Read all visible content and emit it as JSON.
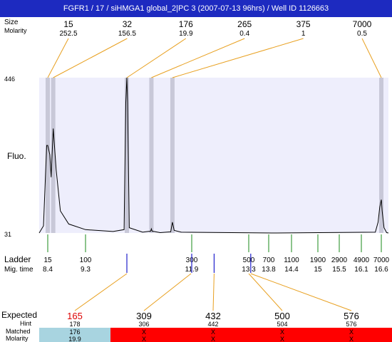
{
  "title": "FGFR1 / 17 / siHMGA1 global_2|PC 3 (2007-07-13 96hrs) / Well ID 1126663",
  "labels": {
    "size": "Size",
    "molarity": "Molarity",
    "fluo": "Fluo.",
    "ladder": "Ladder",
    "migtime": "Mig. time",
    "expected": "Expected",
    "hint": "Hint",
    "matched": "Matched",
    "molarity_bottom": "Molarity"
  },
  "colors": {
    "title_bg": "#1d2ac0",
    "plot_bg": "#eeeefc",
    "peak_band": "#c8c8d8",
    "callout_line": "#e8a020",
    "ladder_tick": "#1a8a1a",
    "observed_tick": "#2020cc",
    "matched_ok": "#a8d4e0",
    "matched_bad": "#ff0000",
    "expected_unmatched": "#dd0000"
  },
  "chart_data": {
    "type": "line",
    "y_axis": {
      "top_label": "446",
      "bottom_label": "31"
    },
    "peaks": [
      {
        "size": "15",
        "molarity": "252.5",
        "mig_time": 8.4
      },
      {
        "size": "32",
        "molarity": "156.5",
        "mig_time": 8.53
      },
      {
        "size": "176",
        "molarity": "19.9",
        "mig_time": 10.05
      },
      {
        "size": "265",
        "molarity": "0.4",
        "mig_time": 10.75
      },
      {
        "size": "375",
        "molarity": "1",
        "mig_time": 11.35
      },
      {
        "size": "7000",
        "molarity": "0.5",
        "mig_time": 16.6
      }
    ],
    "ladder": [
      {
        "size": "15",
        "time": "8.4"
      },
      {
        "size": "100",
        "time": "9.3"
      },
      {
        "size": "300",
        "time": "11.9"
      },
      {
        "size": "500",
        "time": "13.3"
      },
      {
        "size": "700",
        "time": "13.8"
      },
      {
        "size": "1100",
        "time": "14.4"
      },
      {
        "size": "1900",
        "time": "15"
      },
      {
        "size": "2900",
        "time": "15.5"
      },
      {
        "size": "4900",
        "time": "16.1"
      },
      {
        "size": "7000",
        "time": "16.6"
      }
    ],
    "observed_ticks": [
      10.05,
      11.9,
      12.45,
      13.35
    ],
    "expected": [
      {
        "expected": "165",
        "hint": "178",
        "matched": "176",
        "molarity": "19.9",
        "ok": true,
        "mig_time": 10.05
      },
      {
        "expected": "309",
        "hint": "306",
        "matched": "X",
        "molarity": "X",
        "ok": false,
        "mig_time": 11.88
      },
      {
        "expected": "432",
        "hint": "442",
        "matched": "X",
        "molarity": "X",
        "ok": false,
        "mig_time": 12.45
      },
      {
        "expected": "500",
        "hint": "504",
        "matched": "X",
        "molarity": "X",
        "ok": false,
        "mig_time": 13.3
      },
      {
        "expected": "576",
        "hint": "576",
        "matched": "X",
        "molarity": "X",
        "ok": false,
        "mig_time": 13.35
      }
    ],
    "trace": [
      [
        8.0,
        31
      ],
      [
        8.2,
        50
      ],
      [
        8.35,
        265
      ],
      [
        8.4,
        265
      ],
      [
        8.45,
        240
      ],
      [
        8.48,
        180
      ],
      [
        8.53,
        310
      ],
      [
        8.6,
        200
      ],
      [
        8.7,
        90
      ],
      [
        8.9,
        55
      ],
      [
        9.3,
        40
      ],
      [
        9.8,
        35
      ],
      [
        10.0,
        40
      ],
      [
        10.03,
        380
      ],
      [
        10.05,
        446
      ],
      [
        10.07,
        380
      ],
      [
        10.12,
        45
      ],
      [
        10.5,
        33
      ],
      [
        10.73,
        36
      ],
      [
        10.75,
        42
      ],
      [
        10.77,
        36
      ],
      [
        11.0,
        32
      ],
      [
        11.3,
        34
      ],
      [
        11.35,
        60
      ],
      [
        11.4,
        38
      ],
      [
        11.6,
        33
      ],
      [
        14.0,
        31
      ],
      [
        16.45,
        33
      ],
      [
        16.52,
        60
      ],
      [
        16.56,
        100
      ],
      [
        16.6,
        120
      ],
      [
        16.65,
        90
      ],
      [
        16.75,
        45
      ],
      [
        16.9,
        32
      ],
      [
        17.0,
        31
      ]
    ]
  }
}
